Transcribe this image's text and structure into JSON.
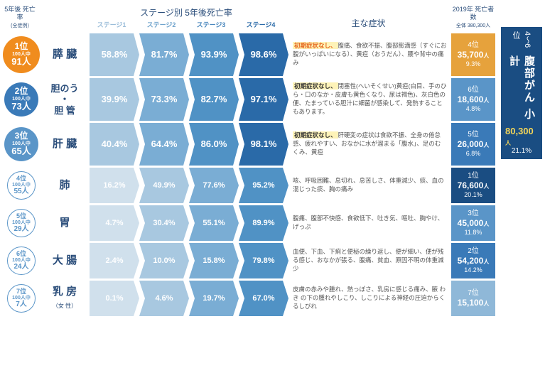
{
  "header": {
    "rank": "5年後\n死亡率",
    "rank_sub": "(全症例)",
    "stages_title": "ステージ別 5年後死亡率",
    "stage_labels": [
      "ステージ1",
      "ステージ2",
      "ステージ3",
      "ステージ4"
    ],
    "symptoms": "主な症状",
    "deaths": "2019年\n死亡者数",
    "deaths_sub": "全体 380,300人"
  },
  "rows": [
    {
      "rank": "1位",
      "per": "100人中",
      "num": "91人",
      "name": "膵 臓",
      "stages": [
        "58.8%",
        "81.7%",
        "93.9%",
        "98.6%"
      ],
      "hl": "初期症状なし、",
      "hlclass": "orange",
      "sym": "腹痛、食欲不振、腹部膨満感（すぐにお腹がいっぱいになる）、黄疸（おうだん）、腰や背中の痛み",
      "dpos": "4位",
      "dnum": "35,700",
      "dpct": "9.3%",
      "dclass": "d4",
      "big": true,
      "rclass": "r1"
    },
    {
      "rank": "2位",
      "per": "100人中",
      "num": "73人",
      "name": "胆のう\n・\n胆 管",
      "nameclass": "sm",
      "stages": [
        "39.9%",
        "73.3%",
        "82.7%",
        "97.1%"
      ],
      "hl": "初期症状なし、",
      "hlclass": "",
      "sym": "閉塞性(へいそくせい)黄疸(白目、手のひら・口のなか・皮膚も黄色くなり、尿は褐色)、灰白色の便、たまっている胆汁に細菌が感染して、発熱することもあります。",
      "dpos": "6位",
      "dnum": "18,600",
      "dpct": "4.8%",
      "dclass": "d6",
      "big": true,
      "rclass": "r2"
    },
    {
      "rank": "3位",
      "per": "100人中",
      "num": "65人",
      "name": "肝 臓",
      "stages": [
        "40.4%",
        "64.4%",
        "86.0%",
        "98.1%"
      ],
      "hl": "初期症状なし、",
      "hlclass": "",
      "sym": "肝硬変の症状は食欲不振、全身の倦怠感、疲れやすい、おなかに水が溜まる「腹水」、足のむくみ、黄疸",
      "dpos": "5位",
      "dnum": "26,000",
      "dpct": "6.8%",
      "dclass": "d5",
      "big": true,
      "rclass": "r3"
    },
    {
      "rank": "4位",
      "per": "100人中",
      "num": "55人",
      "name": "肺",
      "stages": [
        "16.2%",
        "49.9%",
        "77.6%",
        "95.2%"
      ],
      "hl": "",
      "sym": "咳、呼吸困難、息切れ、息苦しさ、体重減少、痰、血の混じった痰、胸の痛み",
      "dpos": "1位",
      "dnum": "76,600",
      "dpct": "20.1%",
      "dclass": "d1",
      "big": false
    },
    {
      "rank": "5位",
      "per": "100人中",
      "num": "29人",
      "name": "胃",
      "stages": [
        "4.7%",
        "30.4%",
        "55.1%",
        "89.9%"
      ],
      "hl": "",
      "sym": "腹痛、腹部不快感、食欲低下、吐き気、嘔吐、胸やけ、げっぷ",
      "dpos": "3位",
      "dnum": "45,000",
      "dpct": "11.8%",
      "dclass": "d3",
      "big": false
    },
    {
      "rank": "6位",
      "per": "100人中",
      "num": "24人",
      "name": "大 腸",
      "stages": [
        "2.4%",
        "10.0%",
        "15.8%",
        "79.8%"
      ],
      "hl": "",
      "sym": "血便、下血、下痢と便秘の繰り返し、便が細い、便が残る感じ、おなかが張る、腹痛、貧血、原因不明の体重減少",
      "dpos": "2位",
      "dnum": "54,200",
      "dpct": "14.2%",
      "dclass": "d2",
      "big": false
    },
    {
      "rank": "7位",
      "per": "100人中",
      "num": "7人",
      "name": "乳 房",
      "namesub": "（女 性）",
      "stages": [
        "0.1%",
        "4.6%",
        "19.7%",
        "67.0%"
      ],
      "hl": "",
      "sym": "皮膚の赤みや腫れ、熱っぽさ、乳房に感じる痛み、腋 わき の下の腫れやしこり、しこりによる神経の圧迫からくるしびれ",
      "dpos": "7位",
      "dnum": "15,100",
      "dpct": "",
      "dclass": "d7",
      "big": false
    }
  ],
  "sidebar": {
    "t1": "4〜6位",
    "t2": "腹部がん 小計",
    "t3": "80,300",
    "t4": "21.1%"
  }
}
